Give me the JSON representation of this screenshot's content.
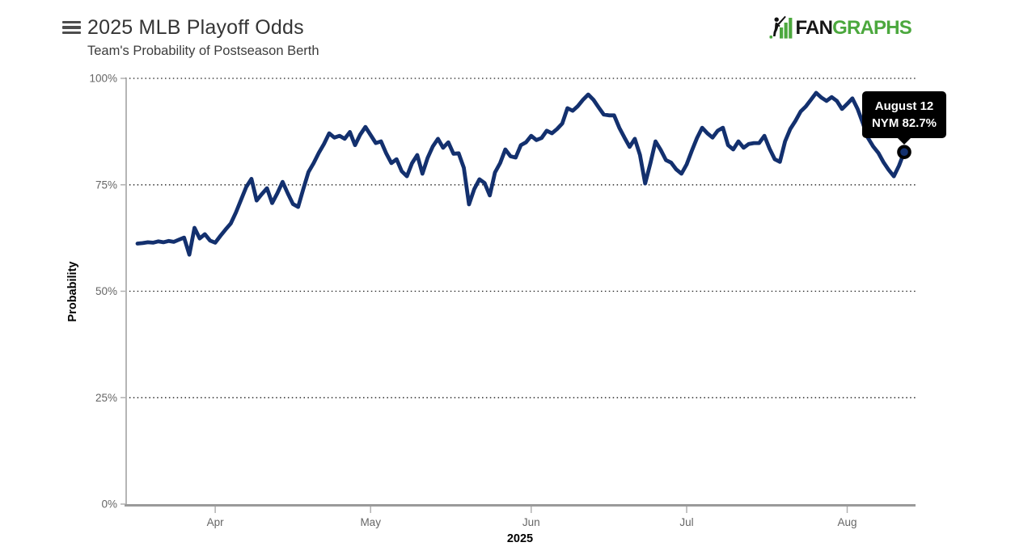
{
  "header": {
    "title": "2025 MLB Playoff Odds",
    "subtitle": "Team's Probability of Postseason Berth"
  },
  "logo": {
    "fan": "FAN",
    "graphs": "GRAPHS",
    "green": "#4ca83e",
    "black": "#161616"
  },
  "tooltip": {
    "date": "August 12",
    "value_label": "NYM 82.7%",
    "bg": "#000000",
    "text_color": "#ffffff"
  },
  "chart_data": {
    "type": "line",
    "title": "2025 MLB Playoff Odds",
    "subtitle": "Team's Probability of Postseason Berth",
    "xlabel": "2025",
    "ylabel": "Probability",
    "ylim": [
      0,
      100
    ],
    "grid": "dotted horizontal",
    "legend_position": "none",
    "series_name": "NYM",
    "line_color": "#13306e",
    "marker_stroke": "#000000",
    "y_ticks": [
      {
        "label": "0%",
        "value": 0
      },
      {
        "label": "25%",
        "value": 25
      },
      {
        "label": "50%",
        "value": 50
      },
      {
        "label": "75%",
        "value": 75
      },
      {
        "label": "100%",
        "value": 100
      }
    ],
    "grid_values": [
      25,
      50,
      75,
      100
    ],
    "highlight_point": {
      "date": "August 12",
      "team": "NYM",
      "value": 82.7
    },
    "months": [
      {
        "label": "Mar",
        "tick": false,
        "start_day": 17,
        "values": [
          61.2,
          61.3,
          61.5,
          61.4,
          61.7,
          61.5,
          61.8,
          61.6,
          62.1,
          62.6,
          58.6,
          64.9,
          62.4,
          63.4,
          61.9
        ]
      },
      {
        "label": "Apr",
        "tick": true,
        "start_day": 1,
        "values": [
          61.4,
          63.0,
          64.5,
          65.9,
          68.5,
          71.5,
          74.5,
          76.4,
          71.3,
          72.8,
          74.2,
          70.7,
          73.0,
          75.7,
          73.0,
          70.5,
          69.8,
          74.0,
          78.0,
          80.1,
          82.5,
          84.6,
          87.1,
          86.1,
          86.5,
          85.8,
          87.4,
          84.3,
          86.8,
          88.6
        ]
      },
      {
        "label": "May",
        "tick": true,
        "start_day": 1,
        "values": [
          86.7,
          84.8,
          85.2,
          82.4,
          80.1,
          81.0,
          78.2,
          77.0,
          80.1,
          82.0,
          77.6,
          81.3,
          84.0,
          85.8,
          83.7,
          85.0,
          82.3,
          82.4,
          79.0,
          70.4,
          74.0,
          76.3,
          75.4,
          72.5,
          77.9,
          80.1,
          83.3,
          81.7,
          81.4,
          84.3,
          85.0
        ]
      },
      {
        "label": "Jun",
        "tick": true,
        "start_day": 1,
        "values": [
          86.5,
          85.5,
          86.0,
          87.7,
          87.1,
          88.1,
          89.4,
          93.0,
          92.4,
          93.5,
          95.0,
          96.2,
          95.0,
          93.2,
          91.5,
          91.3,
          91.3,
          88.4,
          86.1,
          83.9,
          85.8,
          82.0,
          75.3,
          80.0,
          85.2,
          83.2,
          80.8,
          80.2,
          78.6,
          77.6
        ]
      },
      {
        "label": "Jul",
        "tick": true,
        "start_day": 1,
        "values": [
          79.8,
          83.0,
          86.0,
          88.4,
          87.1,
          86.1,
          87.7,
          88.4,
          84.3,
          83.3,
          85.2,
          83.7,
          84.6,
          84.8,
          84.8,
          86.5,
          83.5,
          81.0,
          80.4,
          85.2,
          88.1,
          90.0,
          92.2,
          93.4,
          95.0,
          96.6,
          95.5,
          94.7,
          95.6,
          94.7,
          92.8
        ]
      },
      {
        "label": "Aug",
        "tick": true,
        "start_day": 1,
        "values": [
          94.0,
          95.3,
          92.8,
          89.5,
          86.0,
          84.0,
          82.5,
          80.3,
          78.5,
          77.0,
          79.5,
          82.7
        ]
      }
    ]
  }
}
